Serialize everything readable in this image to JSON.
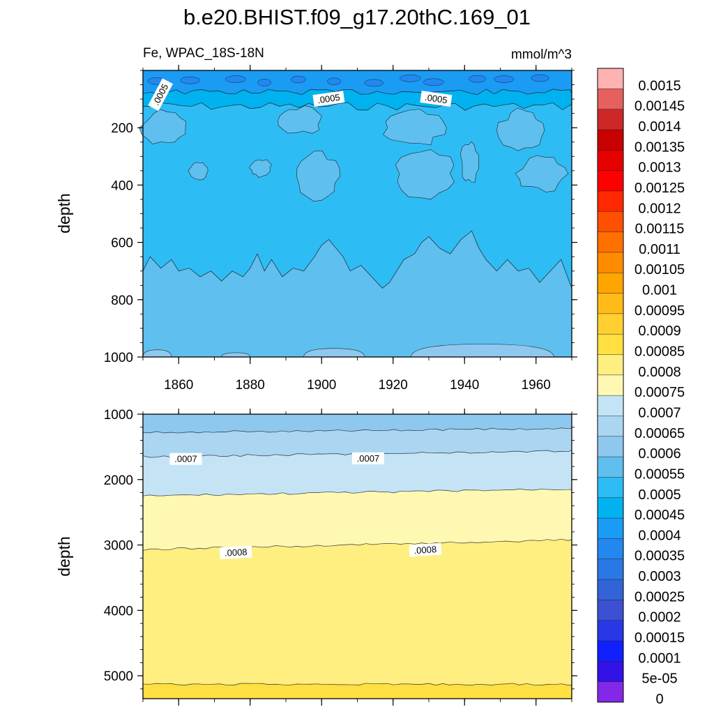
{
  "chart_data": {
    "type": "contour",
    "title": "b.e20.BHIST.f09_g17.20thC.169_01",
    "variable_label": "Fe, WPAC_18S-18N",
    "units": "mmol/m^3",
    "colorbar_labels": [
      "0.0015",
      "0.00145",
      "0.0014",
      "0.00135",
      "0.0013",
      "0.00125",
      "0.0012",
      "0.00115",
      "0.0011",
      "0.00105",
      "0.001",
      "0.00095",
      "0.0009",
      "0.00085",
      "0.0008",
      "0.00075",
      "0.0007",
      "0.00065",
      "0.0006",
      "0.00055",
      "0.0005",
      "0.00045",
      "0.0004",
      "0.00035",
      "0.0003",
      "0.00025",
      "0.0002",
      "0.00015",
      "0.0001",
      "5e-05",
      "0"
    ],
    "colorbar_colors": [
      "#ffb2b2",
      "#e66060",
      "#cc2828",
      "#c80000",
      "#e60000",
      "#ff0000",
      "#ff2800",
      "#ff5000",
      "#ff7000",
      "#ff8c00",
      "#ffa500",
      "#ffbb18",
      "#ffd030",
      "#ffe040",
      "#ffee80",
      "#fff8b2",
      "#c4e4f6",
      "#aad6f2",
      "#8ec8ee",
      "#5fbfef",
      "#2ebcf5",
      "#00b2ef",
      "#1a9cf5",
      "#2288f0",
      "#2a78e6",
      "#3264d8",
      "#3c50d2",
      "#2838e6",
      "#1020ff",
      "#3212e6",
      "#8228e6"
    ],
    "panels": [
      {
        "xlabel": "",
        "ylabel": "depth",
        "ylim": [
          0,
          1000
        ],
        "yticks": [
          "200",
          "400",
          "600",
          "800",
          "1000"
        ],
        "xticks": [
          "1860",
          "1880",
          "1900",
          "1920",
          "1940",
          "1960"
        ],
        "xlim": [
          1850,
          1970
        ],
        "contour_labels": [
          ".0005",
          ".0005",
          ".0005"
        ],
        "note": "Fe 0.0005-0.00055 in most of the 0-1000 m column; 0.00055-0.0006 below ~650 m; patches of 0.00055-0.0006 at 150-450 m; 0.00035-0.00045 in the top ~70 m"
      },
      {
        "xlabel": "",
        "ylabel": "depth",
        "ylim": [
          1000,
          5350
        ],
        "yticks": [
          "1000",
          "2000",
          "3000",
          "4000",
          "5000"
        ],
        "xlim": [
          1850,
          1970
        ],
        "contour_labels": [
          ".0007",
          ".0007",
          ".0008",
          ".0008"
        ],
        "bands": [
          {
            "range": "0.0006-0.00065",
            "depth_top": 1000,
            "depth_bottom": 1280
          },
          {
            "range": "0.00065-0.0007",
            "depth_top": 1280,
            "depth_bottom": 1650
          },
          {
            "range": "0.0007-0.00075",
            "depth_top": 1650,
            "depth_bottom": 2250
          },
          {
            "range": "0.00075-0.0008",
            "depth_top": 2250,
            "depth_bottom": 3070
          },
          {
            "range": "0.0008-0.00085",
            "depth_top": 3070,
            "depth_bottom": 5130
          },
          {
            "range": "0.00085-0.0009",
            "depth_top": 5130,
            "depth_bottom": 5350
          }
        ]
      }
    ]
  }
}
